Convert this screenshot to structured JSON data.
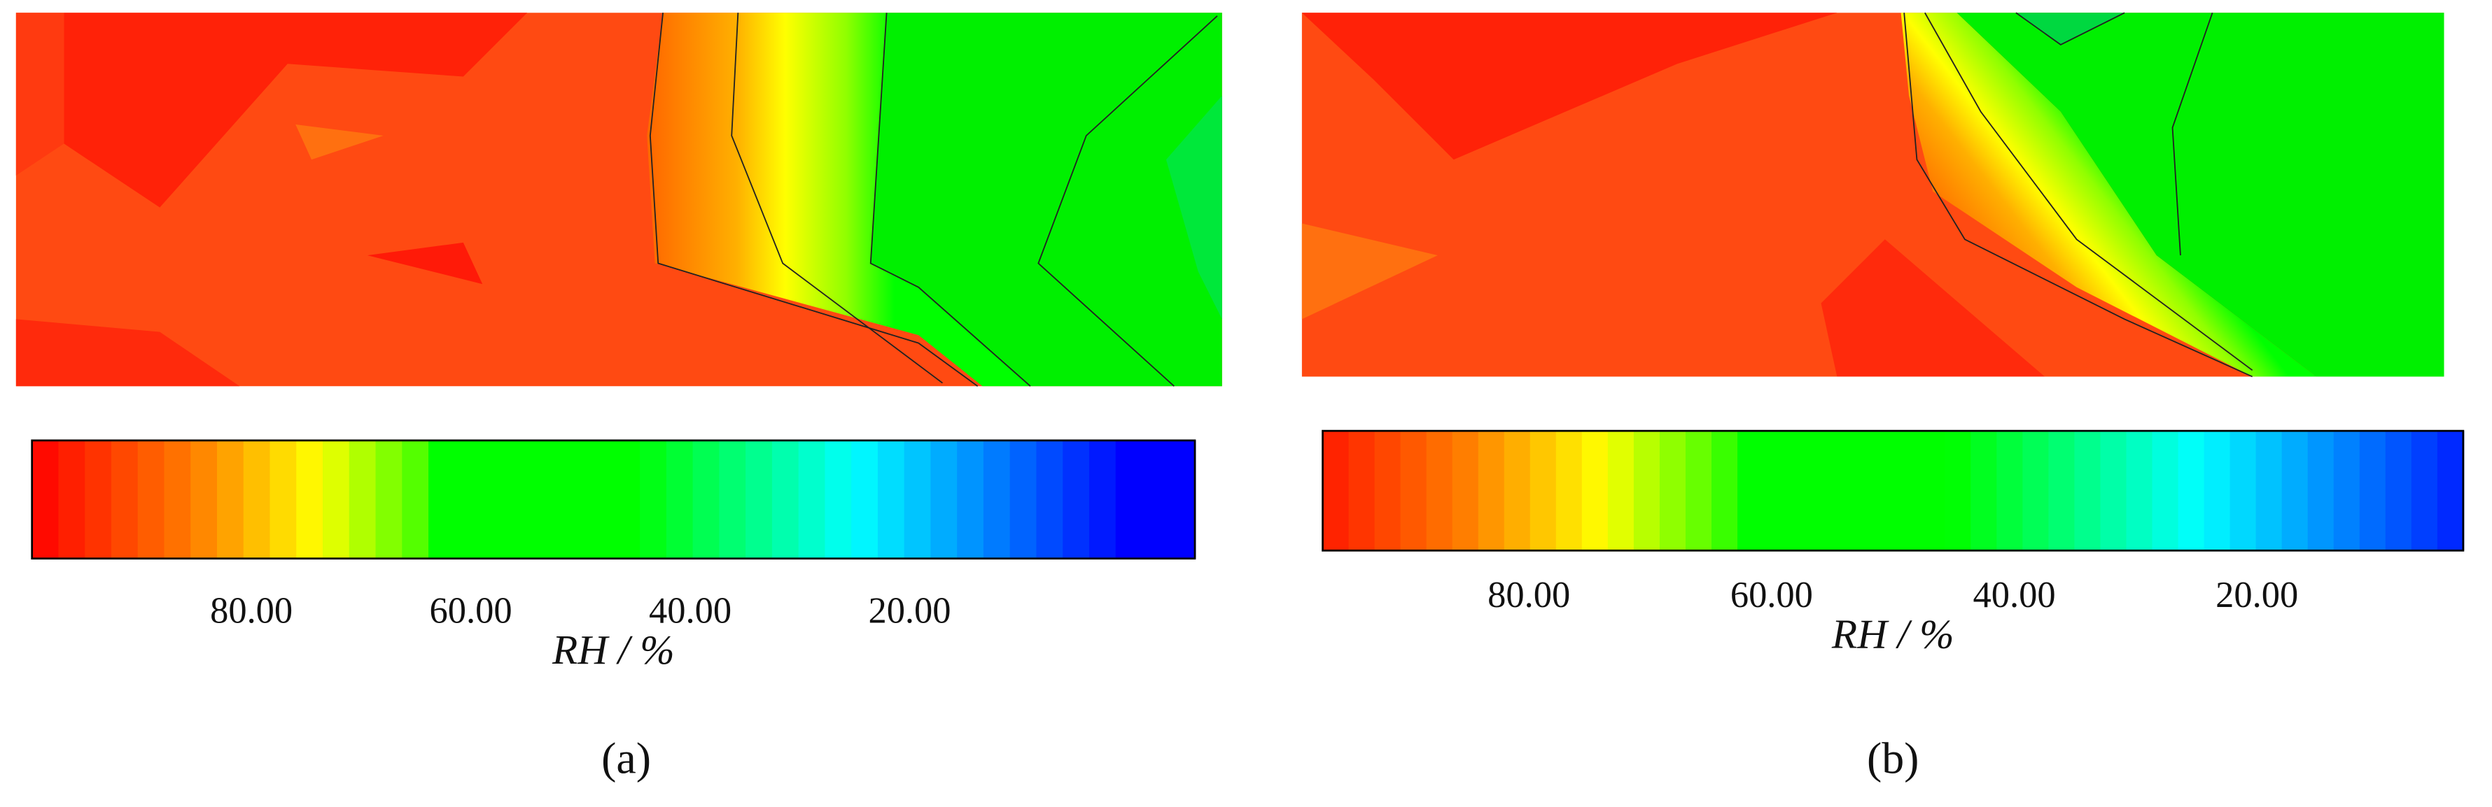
{
  "chart_data": [
    {
      "type": "contour",
      "panel_label": "(a)",
      "colorbar_label": "RH / %",
      "xlim": [
        100,
        -6
      ],
      "xticks": [
        {
          "value": 80,
          "label": "80.00"
        },
        {
          "value": 60,
          "label": "60.00"
        },
        {
          "value": 40,
          "label": "40.00"
        },
        {
          "value": 20,
          "label": "20.00"
        }
      ]
    },
    {
      "type": "contour",
      "panel_label": "(b)",
      "colorbar_label": "RH / %",
      "xlim": [
        97,
        3
      ],
      "xticks": [
        {
          "value": 80,
          "label": "80.00"
        },
        {
          "value": 60,
          "label": "60.00"
        },
        {
          "value": 40,
          "label": "40.00"
        },
        {
          "value": 20,
          "label": "20.00"
        }
      ]
    }
  ],
  "colormap": [
    [
      100,
      "#ff0000"
    ],
    [
      85,
      "#ff8000"
    ],
    [
      74,
      "#ffff00"
    ],
    [
      64,
      "#40ff00"
    ],
    [
      63,
      "#00ff00"
    ],
    [
      45,
      "#00ff00"
    ],
    [
      25,
      "#00ffff"
    ],
    [
      0,
      "#0000ff"
    ]
  ]
}
